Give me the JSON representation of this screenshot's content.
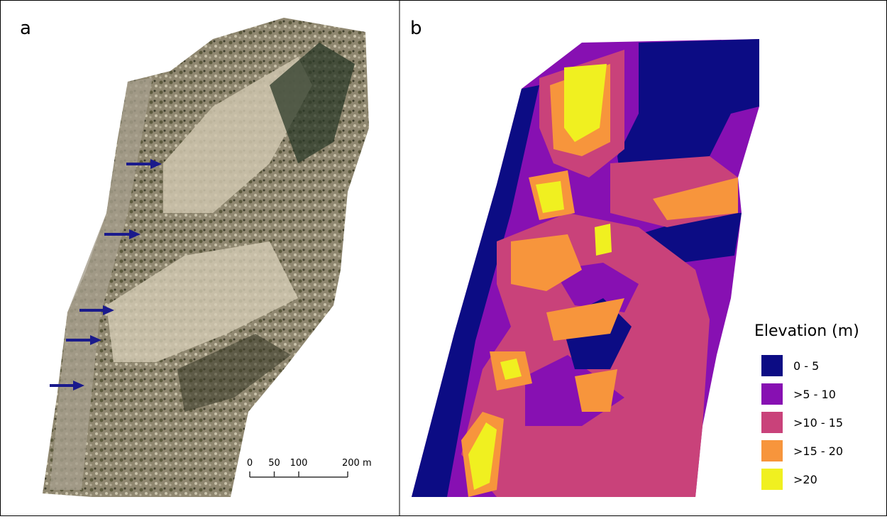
{
  "panels": [
    {
      "label": "a"
    },
    {
      "label": "b"
    }
  ],
  "scale_bar": {
    "ticks": [
      {
        "value": 0,
        "label": "0"
      },
      {
        "value": 50,
        "label": "50"
      },
      {
        "value": 100,
        "label": "100"
      },
      {
        "value": 200,
        "label": "200 m"
      }
    ]
  },
  "legend": {
    "title": "Elevation (m)",
    "entries": [
      {
        "label": "0 - 5",
        "color": "#0c0c84"
      },
      {
        "label": ">5 - 10",
        "color": "#8710b2"
      },
      {
        "label": ">10 - 15",
        "color": "#c9427a"
      },
      {
        "label": ">15 - 20",
        "color": "#f7953c"
      },
      {
        "label": ">20",
        "color": "#f0f020"
      }
    ]
  }
}
